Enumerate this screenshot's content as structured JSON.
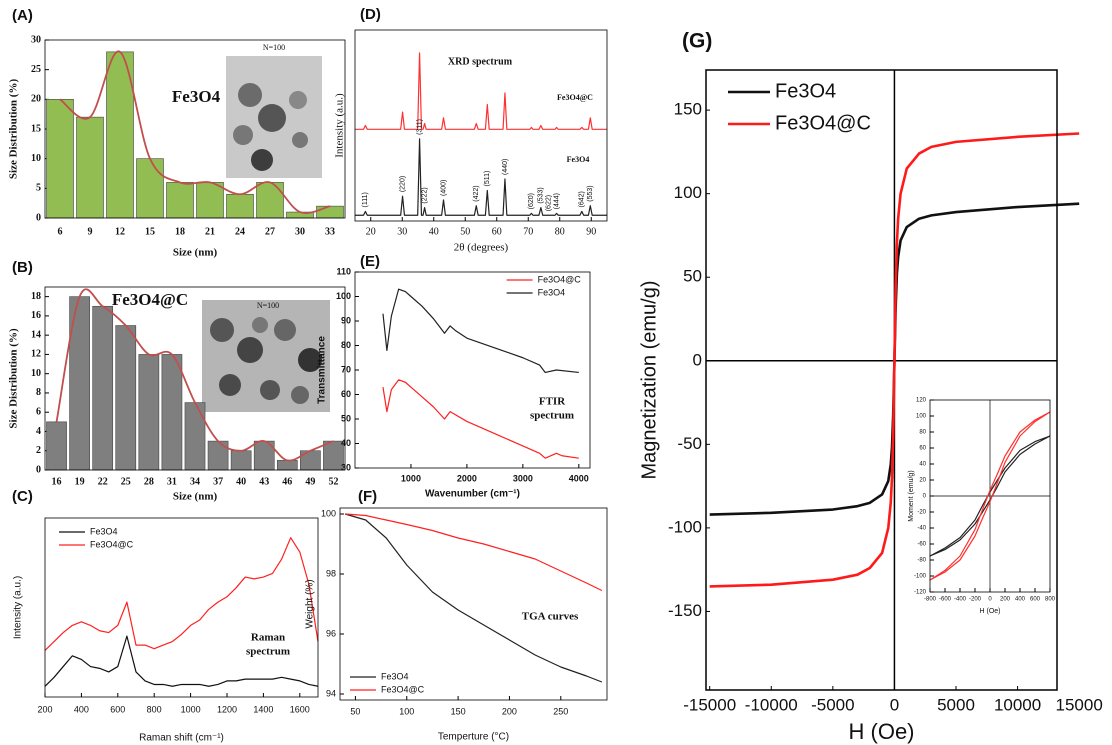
{
  "chart_data": [
    {
      "type": "bar",
      "label": "(A)",
      "annotation": "Fe3O4",
      "annotation_color": "#222222",
      "inset_title": "N=100",
      "xlabel": "Size (nm)",
      "ylabel": "Size Distribution (%)",
      "categories": [
        "6",
        "9",
        "12",
        "15",
        "18",
        "21",
        "24",
        "27",
        "30",
        "33"
      ],
      "values": [
        20,
        17,
        28,
        10,
        6,
        6,
        4,
        6,
        1,
        2
      ],
      "color": "#92bd52",
      "fit_color": "#c0504d",
      "ylim": [
        0,
        30
      ],
      "yticks": [
        0,
        5,
        10,
        15,
        20,
        25,
        30
      ]
    },
    {
      "type": "bar",
      "label": "(B)",
      "annotation": "Fe3O4@C",
      "annotation_color": "#e8262a",
      "inset_title": "N=100",
      "xlabel": "Size (nm)",
      "ylabel": "Size Distribution (%)",
      "categories": [
        "16",
        "19",
        "22",
        "25",
        "28",
        "31",
        "34",
        "37",
        "40",
        "43",
        "46",
        "49",
        "52"
      ],
      "values": [
        5,
        18,
        17,
        15,
        12,
        12,
        7,
        3,
        2,
        3,
        1,
        2,
        3
      ],
      "color": "#7f7f7f",
      "fit_color": "#c0504d",
      "ylim": [
        0,
        19
      ],
      "yticks": [
        0,
        2,
        4,
        6,
        8,
        10,
        12,
        14,
        16,
        18
      ]
    },
    {
      "type": "line",
      "label": "(C)",
      "annotation": [
        "Raman",
        "spectrum"
      ],
      "xlabel": "Raman shift (cm⁻¹)",
      "ylabel": "Intensity (a.u.)",
      "legend": "upper left",
      "x": [
        200,
        250,
        300,
        350,
        400,
        450,
        500,
        550,
        600,
        650,
        700,
        750,
        800,
        850,
        900,
        950,
        1000,
        1050,
        1100,
        1150,
        1200,
        1250,
        1300,
        1350,
        1400,
        1450,
        1500,
        1550,
        1600,
        1650,
        1700
      ],
      "series": [
        {
          "name": "Fe3O4",
          "color": "#111111",
          "values": [
            6,
            11,
            17,
            23,
            21,
            17,
            16,
            14,
            17,
            34,
            14,
            9,
            7,
            7,
            6,
            7,
            7,
            7,
            6,
            7,
            9,
            9,
            10,
            10,
            10,
            10,
            11,
            10,
            9,
            7,
            6
          ]
        },
        {
          "name": "Fe3O4@C",
          "color": "#ff2020",
          "values": [
            26,
            31,
            36,
            40,
            42,
            40,
            37,
            36,
            40,
            53,
            29,
            29,
            27,
            29,
            31,
            35,
            40,
            43,
            49,
            53,
            56,
            61,
            67,
            66,
            67,
            69,
            77,
            89,
            81,
            63,
            31
          ]
        }
      ],
      "xlim": [
        200,
        1700
      ],
      "xticks": [
        200,
        400,
        600,
        800,
        1000,
        1200,
        1400,
        1600
      ],
      "ylim": [
        0,
        100
      ]
    },
    {
      "type": "line",
      "label": "(D)",
      "title": "XRD spectrum",
      "xlabel": "2θ (degrees)",
      "ylabel": "Intensity (a.u.)",
      "legend": "inline",
      "x": [
        15,
        17.7,
        18.3,
        18.9,
        29.5,
        30.1,
        30.7,
        34.9,
        35.5,
        36.1,
        36.6,
        37.1,
        37.6,
        42.5,
        43.1,
        43.7,
        52.9,
        53.5,
        54.1,
        56.4,
        57,
        57.6,
        62,
        62.6,
        63.2,
        70.5,
        71,
        71.5,
        73.4,
        74,
        74.6,
        78.5,
        79,
        79.5,
        86.4,
        87,
        87.6,
        89.1,
        89.7,
        90.3,
        95
      ],
      "series": [
        {
          "name": "Fe3O4@C",
          "color": "#ff3030",
          "values": [
            48,
            48,
            50,
            48,
            48,
            57,
            48,
            48,
            88,
            48,
            48,
            51,
            48,
            48,
            54,
            48,
            48,
            51,
            48,
            48,
            61,
            48,
            48,
            67,
            48,
            48,
            49,
            48,
            48,
            50,
            48,
            48,
            49,
            48,
            48,
            49,
            48,
            48,
            54,
            48,
            48
          ]
        },
        {
          "name": "Fe3O4",
          "color": "#222222",
          "values": [
            3,
            3,
            5,
            3,
            3,
            13,
            3,
            3,
            43,
            3,
            3,
            7,
            3,
            3,
            11,
            3,
            3,
            8,
            3,
            3,
            16,
            3,
            3,
            22,
            3,
            3,
            4,
            3,
            3,
            7,
            3,
            3,
            4,
            3,
            3,
            5,
            3,
            3,
            8,
            3,
            3
          ]
        }
      ],
      "peak_labels": [
        {
          "x": 18.3,
          "label": "(111)"
        },
        {
          "x": 30.1,
          "label": "(220)"
        },
        {
          "x": 35.5,
          "label": "(311)"
        },
        {
          "x": 37.1,
          "label": "(222)"
        },
        {
          "x": 43.1,
          "label": "(400)"
        },
        {
          "x": 53.5,
          "label": "(422)"
        },
        {
          "x": 57,
          "label": "(511)"
        },
        {
          "x": 62.6,
          "label": "(440)"
        },
        {
          "x": 71,
          "label": "(620)"
        },
        {
          "x": 74,
          "label": "(533)"
        },
        {
          "x": 76.5,
          "label": "(622)"
        },
        {
          "x": 79,
          "label": "(444)"
        },
        {
          "x": 87,
          "label": "(642)"
        },
        {
          "x": 89.7,
          "label": "(553)"
        }
      ],
      "xlim": [
        15,
        95
      ],
      "xticks": [
        20,
        30,
        40,
        50,
        60,
        70,
        80,
        90
      ],
      "ylim": [
        0,
        100
      ]
    },
    {
      "type": "line",
      "label": "(E)",
      "annotation": [
        "FTIR",
        "spectrum"
      ],
      "xlabel": "Wavenumber (cm⁻¹)",
      "ylabel": "Transmittance",
      "legend": "upper right",
      "series": [
        {
          "name": "Fe3O4@C",
          "color": "#ff2020",
          "x": [
            500,
            570,
            650,
            780,
            900,
            1000,
            1200,
            1400,
            1600,
            1700,
            2000,
            2500,
            3000,
            3300,
            3400,
            3600,
            3700,
            4000
          ],
          "values": [
            63,
            53,
            62,
            66,
            65,
            63,
            59,
            55,
            50,
            53,
            49,
            44,
            39,
            36,
            34,
            36,
            35,
            34
          ]
        },
        {
          "name": "Fe3O4",
          "color": "#222222",
          "x": [
            500,
            570,
            650,
            780,
            900,
            1000,
            1200,
            1400,
            1600,
            1700,
            1800,
            2000,
            2500,
            3000,
            3300,
            3400,
            3600,
            4000
          ],
          "values": [
            93,
            78,
            92,
            103,
            102,
            100,
            96,
            91,
            85,
            88,
            86,
            83,
            79,
            75,
            72,
            69,
            70,
            69
          ]
        }
      ],
      "xlim": [
        0,
        4200
      ],
      "xticks": [
        1000,
        2000,
        3000,
        4000
      ],
      "ylim": [
        30,
        110
      ],
      "yticks": [
        30,
        40,
        50,
        60,
        70,
        80,
        90,
        100,
        110
      ]
    },
    {
      "type": "line",
      "label": "(F)",
      "annotation": [
        "TGA curves"
      ],
      "xlabel": "Temperture (°C)",
      "ylabel": "Weight (%)",
      "legend": "lower left",
      "x": [
        40,
        60,
        80,
        100,
        125,
        150,
        175,
        200,
        225,
        250,
        275,
        290
      ],
      "series": [
        {
          "name": "Fe3O4",
          "color": "#222222",
          "values": [
            100,
            99.8,
            99.2,
            98.3,
            97.4,
            96.8,
            96.3,
            95.8,
            95.3,
            94.9,
            94.6,
            94.4
          ]
        },
        {
          "name": "Fe3O4@C",
          "color": "#ff2020",
          "values": [
            100,
            99.95,
            99.8,
            99.65,
            99.45,
            99.2,
            99.0,
            98.75,
            98.5,
            98.1,
            97.7,
            97.45
          ]
        }
      ],
      "xlim": [
        35,
        295
      ],
      "xticks": [
        50,
        100,
        150,
        200,
        250
      ],
      "ylim": [
        93.8,
        100.2
      ],
      "yticks": [
        94,
        96,
        98,
        100
      ]
    },
    {
      "type": "line",
      "label": "(G)",
      "xlabel": "H (Oe)",
      "ylabel": "Magnetization (emu/g)",
      "legend": "upper left",
      "zero_lines": true,
      "x": [
        -15000,
        -10000,
        -5000,
        -3000,
        -2000,
        -1000,
        -500,
        -300,
        -200,
        -100,
        0,
        100,
        200,
        300,
        500,
        1000,
        2000,
        3000,
        5000,
        10000,
        15000
      ],
      "series": [
        {
          "name": "Fe3O4",
          "color": "#111111",
          "values": [
            -92,
            -91,
            -89,
            -87,
            -85,
            -80,
            -72,
            -62,
            -52,
            -32,
            0,
            32,
            52,
            62,
            72,
            80,
            85,
            87,
            89,
            92,
            94
          ]
        },
        {
          "name": "Fe3O4@C",
          "color": "#ff1a1a",
          "values": [
            -135,
            -134,
            -131,
            -128,
            -124,
            -115,
            -100,
            -85,
            -70,
            -45,
            0,
            45,
            70,
            85,
            100,
            115,
            124,
            128,
            131,
            134,
            136
          ]
        }
      ],
      "xlim": [
        -15300,
        13200
      ],
      "xticks": [
        -15000,
        -10000,
        -5000,
        0,
        5000,
        10000,
        15000
      ],
      "ylim": [
        -197,
        174
      ],
      "yticks": [
        -150,
        -100,
        -50,
        0,
        50,
        100,
        150
      ]
    },
    {
      "type": "line",
      "xlabel": "H (Oe)",
      "ylabel": "Moment (emu/g)",
      "zero_lines": true,
      "x": [
        800,
        600,
        400,
        200,
        100,
        0,
        -100,
        -200,
        -400,
        -600,
        -800,
        -600,
        -400,
        -200,
        -100,
        0,
        100,
        200,
        400,
        600,
        800
      ],
      "series": [
        {
          "color": "#222222",
          "values": [
            75,
            68,
            57,
            35,
            20,
            5,
            -12,
            -30,
            -52,
            -65,
            -75,
            -67,
            -55,
            -35,
            -20,
            -5,
            12,
            30,
            52,
            65,
            75
          ]
        },
        {
          "color": "#ff3030",
          "values": [
            105,
            95,
            80,
            50,
            28,
            7,
            -17,
            -42,
            -75,
            -93,
            -105,
            -95,
            -80,
            -50,
            -28,
            -7,
            17,
            42,
            75,
            93,
            105
          ]
        }
      ],
      "xlim": [
        -800,
        800
      ],
      "xticks": [
        -800,
        -600,
        -400,
        -200,
        0,
        200,
        400,
        600,
        800
      ],
      "ylim": [
        -120,
        120
      ],
      "yticks": [
        -120,
        -100,
        -80,
        -60,
        -40,
        -20,
        0,
        20,
        40,
        60,
        80,
        100,
        120
      ]
    }
  ]
}
